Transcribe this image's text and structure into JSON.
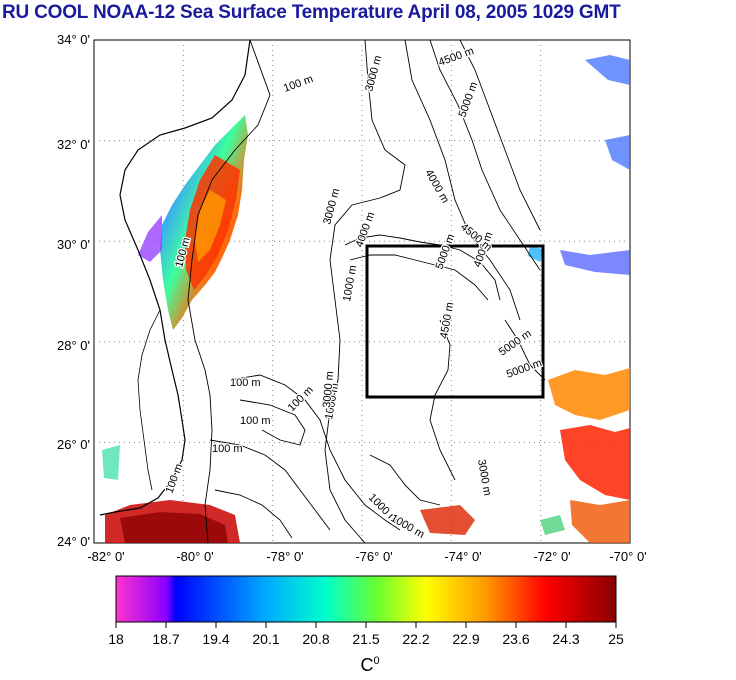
{
  "title": "RU COOL  NOAA-12 Sea Surface Temperature April 08, 2005 1029 GMT",
  "map": {
    "lat_range": [
      24,
      34
    ],
    "lon_range": [
      -82,
      -70
    ],
    "y_tick_labels": [
      "34° 0'",
      "32° 0'",
      "30° 0'",
      "28° 0'",
      "26° 0'",
      "24° 0'"
    ],
    "x_tick_labels": [
      "-82° 0'",
      "-80° 0'",
      "-78° 0'",
      "-76° 0'",
      "-74° 0'",
      "-72° 0'",
      "-70° 0'"
    ],
    "grid": true,
    "study_box": {
      "lon": [
        -76,
        -72
      ],
      "lat": [
        27,
        30
      ]
    },
    "contour_labels": [
      "100 m",
      "100 m",
      "100 m",
      "100 m",
      "100 m",
      "100 m",
      "100 m",
      "1000 m",
      "1000 m",
      "1000 m",
      "1000 m",
      "3000 m",
      "3000 m",
      "3000 m",
      "3000 m",
      "4000 m",
      "4000 m",
      "4000 m",
      "4500 m",
      "4500 m",
      "4500 m",
      "5000 m",
      "5000 m",
      "5000 m",
      "5000 m"
    ]
  },
  "colorbar": {
    "tick_labels": [
      "18",
      "18.7",
      "19.4",
      "20.1",
      "20.8",
      "21.5",
      "22.2",
      "22.9",
      "23.6",
      "24.3",
      "25"
    ],
    "unit_base": "C",
    "unit_sup": "0",
    "range": [
      18,
      25
    ]
  }
}
